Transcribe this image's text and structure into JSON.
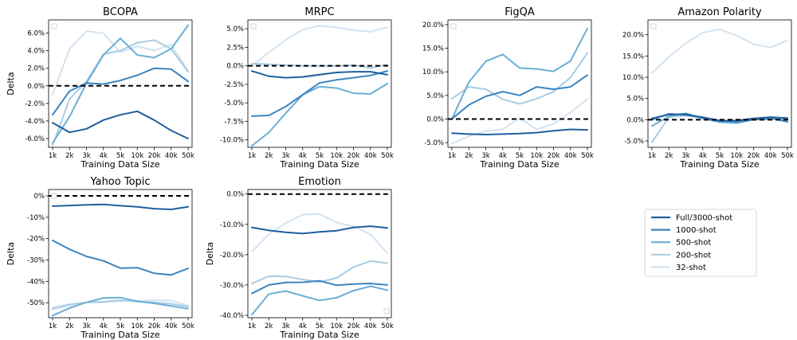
{
  "colors": {
    "Full/3000-shot": "#1f5f9e",
    "1000-shot": "#3a85c0",
    "500-shot": "#6aaed6",
    "200-shot": "#a9cce3",
    "32-shot": "#d3e3f1",
    "baseline": "#000000"
  },
  "legend": {
    "placement": "right",
    "entries": [
      "Full/3000-shot",
      "1000-shot",
      "500-shot",
      "200-shot",
      "32-shot"
    ]
  },
  "chart_data": [
    {
      "type": "line",
      "title": "BCOPA",
      "xlabel": "Training Data Size",
      "ylabel": "Delta",
      "categories": [
        "1k",
        "2k",
        "3k",
        "4k",
        "5k",
        "10k",
        "20k",
        "40k",
        "50k"
      ],
      "ylim": [
        -7.0,
        7.5
      ],
      "yticks": [
        -6,
        -4,
        -2,
        0,
        2,
        4,
        6
      ],
      "ytick_labels": [
        "-6.0%",
        "-4.0%",
        "-2.0%",
        "0.0%",
        "2.0%",
        "4.0%",
        "6.0%"
      ],
      "series": [
        {
          "name": "Full/3000-shot",
          "values": [
            -4.2,
            -5.3,
            -4.9,
            -3.9,
            -3.3,
            -2.9,
            -3.9,
            -5.1,
            -6.0
          ]
        },
        {
          "name": "1000-shot",
          "values": [
            -3.3,
            -0.6,
            0.3,
            0.2,
            0.6,
            1.2,
            2.0,
            1.9,
            0.5
          ]
        },
        {
          "name": "500-shot",
          "values": [
            -6.5,
            -3.5,
            0.3,
            3.5,
            5.4,
            3.5,
            3.2,
            4.2,
            6.9
          ]
        },
        {
          "name": "200-shot",
          "values": [
            -6.8,
            -1.5,
            0.5,
            3.6,
            4.0,
            4.9,
            5.2,
            4.2,
            1.6
          ]
        },
        {
          "name": "32-shot",
          "values": [
            -1.0,
            4.2,
            6.2,
            6.0,
            3.8,
            4.5,
            4.0,
            4.7,
            1.7
          ]
        }
      ]
    },
    {
      "type": "line",
      "title": "MRPC",
      "xlabel": "Training Data Size",
      "ylabel": "",
      "categories": [
        "1k",
        "2k",
        "3k",
        "4k",
        "5k",
        "10k",
        "20k",
        "40k",
        "50k"
      ],
      "ylim": [
        -11.0,
        6.2
      ],
      "yticks": [
        -10,
        -7.5,
        -5,
        -2.5,
        0,
        2.5,
        5
      ],
      "ytick_labels": [
        "-10.0%",
        "-7.5%",
        "-5.0%",
        "-2.5%",
        "0.0%",
        "2.5%",
        "5.0%"
      ],
      "series": [
        {
          "name": "Full/3000-shot",
          "values": [
            -0.7,
            -1.4,
            -1.6,
            -1.5,
            -1.2,
            -0.9,
            -0.8,
            -0.8,
            -1.2
          ]
        },
        {
          "name": "1000-shot",
          "values": [
            -6.8,
            -6.7,
            -5.5,
            -3.9,
            -2.3,
            -1.9,
            -1.6,
            -1.3,
            -0.7
          ]
        },
        {
          "name": "500-shot",
          "values": [
            -10.8,
            -9.0,
            -6.4,
            -3.9,
            -2.8,
            -3.0,
            -3.7,
            -3.8,
            -2.4
          ]
        },
        {
          "name": "200-shot",
          "values": [
            0.3,
            0.2,
            0.1,
            0.0,
            0.0,
            0.0,
            0.1,
            -0.3,
            0.2
          ]
        },
        {
          "name": "32-shot",
          "values": [
            0.0,
            1.8,
            3.5,
            4.9,
            5.4,
            5.2,
            4.8,
            4.6,
            5.2
          ]
        }
      ]
    },
    {
      "type": "line",
      "title": "FigQA",
      "xlabel": "Training Data Size",
      "ylabel": "",
      "categories": [
        "1k",
        "2k",
        "3k",
        "4k",
        "5k",
        "10k",
        "20k",
        "40k",
        "50k"
      ],
      "ylim": [
        -6.0,
        21.0
      ],
      "yticks": [
        -5,
        0,
        5,
        10,
        15,
        20
      ],
      "ytick_labels": [
        "-5.0%",
        "0.0%",
        "5.0%",
        "10.0%",
        "15.0%",
        "20.0%"
      ],
      "series": [
        {
          "name": "Full/3000-shot",
          "values": [
            -3.0,
            -3.2,
            -3.3,
            -3.2,
            -3.1,
            -2.9,
            -2.5,
            -2.2,
            -2.3
          ]
        },
        {
          "name": "1000-shot",
          "values": [
            0.0,
            3.0,
            4.8,
            5.8,
            5.0,
            6.8,
            6.3,
            6.8,
            9.3
          ]
        },
        {
          "name": "500-shot",
          "values": [
            0.0,
            7.8,
            12.2,
            13.7,
            10.8,
            10.6,
            10.1,
            12.3,
            19.2
          ]
        },
        {
          "name": "200-shot",
          "values": [
            4.3,
            6.8,
            6.3,
            4.2,
            3.2,
            4.3,
            5.8,
            8.8,
            14.0
          ]
        },
        {
          "name": "32-shot",
          "values": [
            -5.2,
            -3.6,
            -2.6,
            -2.2,
            0.2,
            -2.2,
            -1.0,
            1.4,
            4.2
          ]
        }
      ]
    },
    {
      "type": "line",
      "title": "Amazon Polarity",
      "xlabel": "Training Data Size",
      "ylabel": "",
      "categories": [
        "1k",
        "2k",
        "3k",
        "4k",
        "5k",
        "10k",
        "20k",
        "40k",
        "50k"
      ],
      "ylim": [
        -6.5,
        23.5
      ],
      "yticks": [
        -5,
        0,
        5,
        10,
        15,
        20
      ],
      "ytick_labels": [
        "-5.0%",
        "0.0%",
        "5.0%",
        "10.0%",
        "15.0%",
        "20.0%"
      ],
      "series": [
        {
          "name": "Full/3000-shot",
          "values": [
            0.3,
            1.2,
            1.3,
            0.5,
            -0.3,
            -0.2,
            0.3,
            0.6,
            0.4
          ]
        },
        {
          "name": "1000-shot",
          "values": [
            0.0,
            1.4,
            1.1,
            0.6,
            -0.2,
            -0.5,
            0.0,
            0.4,
            -0.5
          ]
        },
        {
          "name": "500-shot",
          "values": [
            -1.5,
            0.8,
            1.5,
            0.3,
            -0.6,
            -0.8,
            0.0,
            0.2,
            0.2
          ]
        },
        {
          "name": "200-shot",
          "values": [
            -5.3,
            0.6,
            1.0,
            0.2,
            -0.5,
            -0.6,
            0.0,
            0.1,
            0.3
          ]
        },
        {
          "name": "32-shot",
          "values": [
            11.0,
            14.8,
            18.0,
            20.5,
            21.3,
            19.8,
            17.8,
            17.0,
            18.6
          ]
        }
      ]
    },
    {
      "type": "line",
      "title": "Yahoo Topic",
      "xlabel": "Training Data Size",
      "ylabel": "Delta",
      "categories": [
        "1k",
        "2k",
        "3k",
        "4k",
        "5k",
        "10k",
        "20k",
        "40k",
        "50k"
      ],
      "ylim": [
        -57.0,
        3.0
      ],
      "yticks": [
        -50,
        -40,
        -30,
        -20,
        -10,
        0
      ],
      "ytick_labels": [
        "-50%",
        "-40%",
        "-30%",
        "-20%",
        "-10%",
        "0%"
      ],
      "series": [
        {
          "name": "Full/3000-shot",
          "values": [
            -4.8,
            -4.5,
            -4.2,
            -4.0,
            -4.6,
            -5.1,
            -6.0,
            -6.3,
            -5.1
          ]
        },
        {
          "name": "1000-shot",
          "values": [
            -20.8,
            -25.0,
            -28.3,
            -30.4,
            -33.8,
            -33.6,
            -36.2,
            -37.0,
            -33.9
          ]
        },
        {
          "name": "500-shot",
          "values": [
            -56.0,
            -52.5,
            -49.8,
            -47.8,
            -47.6,
            -49.3,
            -50.3,
            -51.5,
            -52.8
          ]
        },
        {
          "name": "200-shot",
          "values": [
            -52.5,
            -50.8,
            -49.8,
            -49.5,
            -48.8,
            -49.5,
            -49.8,
            -50.5,
            -51.8
          ]
        },
        {
          "name": "32-shot",
          "values": [
            -53.2,
            -51.3,
            -49.8,
            -49.8,
            -49.3,
            -49.1,
            -48.8,
            -49.0,
            -51.3
          ]
        }
      ]
    },
    {
      "type": "line",
      "title": "Emotion",
      "xlabel": "Training Data Size",
      "ylabel": "Delta",
      "categories": [
        "1k",
        "2k",
        "3k",
        "4k",
        "5k",
        "10k",
        "20k",
        "40k",
        "50k"
      ],
      "ylim": [
        -40.8,
        1.5
      ],
      "yticks": [
        -40,
        -30,
        -20,
        -10,
        0
      ],
      "ytick_labels": [
        "-40.0%",
        "-30.0%",
        "-20.0%",
        "-10.0%",
        "0.0%"
      ],
      "series": [
        {
          "name": "Full/3000-shot",
          "values": [
            -11.0,
            -12.0,
            -12.6,
            -13.0,
            -12.5,
            -12.1,
            -11.0,
            -10.6,
            -11.2
          ]
        },
        {
          "name": "1000-shot",
          "values": [
            -32.8,
            -30.0,
            -29.2,
            -29.1,
            -28.6,
            -30.1,
            -29.7,
            -29.5,
            -30.0
          ]
        },
        {
          "name": "500-shot",
          "values": [
            -39.8,
            -33.0,
            -32.0,
            -33.6,
            -35.1,
            -34.2,
            -31.9,
            -30.4,
            -31.7
          ]
        },
        {
          "name": "200-shot",
          "values": [
            -29.5,
            -27.1,
            -27.2,
            -28.2,
            -29.0,
            -27.7,
            -24.1,
            -22.1,
            -22.8
          ]
        },
        {
          "name": "32-shot",
          "values": [
            -19.0,
            -13.3,
            -9.5,
            -6.8,
            -6.6,
            -9.4,
            -10.6,
            -13.3,
            -19.5
          ]
        }
      ]
    }
  ]
}
